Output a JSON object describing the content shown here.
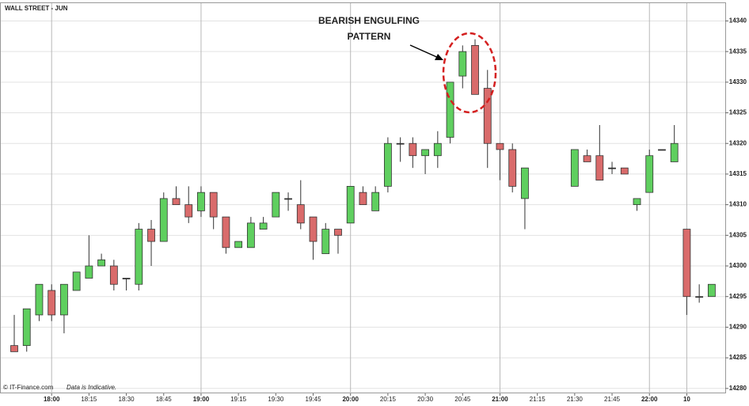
{
  "chart_data": {
    "type": "candlestick",
    "title": "WALL STREET - JUN",
    "footer": "© IT-Finance.com",
    "footer_note": "Data is Indicative.",
    "annotation": [
      "BEARISH ENGULFING",
      "PATTERN"
    ],
    "categories": [
      null,
      null,
      null,
      "18:00",
      null,
      null,
      "18:15",
      null,
      null,
      "18:30",
      null,
      null,
      "18:45",
      null,
      null,
      "19:00",
      null,
      null,
      "19:15",
      null,
      null,
      "19:30",
      null,
      null,
      "19:45",
      null,
      null,
      "20:00",
      null,
      null,
      "20:15",
      null,
      null,
      "20:30",
      null,
      null,
      "20:45",
      null,
      null,
      "21:00",
      null,
      null,
      "21:15",
      null,
      null,
      "21:30",
      null,
      null,
      "21:45",
      null,
      null,
      "22:00",
      null,
      null,
      "10",
      null,
      null
    ],
    "open": [
      14287,
      14287,
      14292,
      14296,
      14292,
      14296,
      14298,
      14300,
      14300,
      14298,
      14297,
      14306,
      14304,
      14311,
      14310,
      14309,
      14312,
      14308,
      14303,
      14303,
      14306,
      14308,
      14311,
      14310,
      14308,
      14302,
      14306,
      14307,
      14312,
      14309,
      14313,
      14320,
      14320,
      14318,
      14318,
      14321,
      14331,
      14336,
      14329,
      14320,
      14319,
      14311,
      null,
      null,
      null,
      14313,
      14318,
      14318,
      14316,
      14316,
      14310,
      14312,
      14319,
      14317,
      14306,
      14295,
      14295
    ],
    "high": [
      14292,
      14293,
      14297,
      14297,
      14297,
      14299,
      14305,
      14302,
      14301,
      14298,
      14307,
      14307.5,
      14312,
      14313,
      14313,
      14313,
      14312,
      14308,
      14304,
      14308,
      14308,
      14312,
      14312,
      14314,
      14308,
      14307,
      14306,
      14313,
      14313,
      14313,
      14321,
      14321,
      14321,
      14319,
      14322,
      14330,
      14336,
      14337,
      14332,
      14320,
      14320,
      14316,
      null,
      null,
      null,
      14319,
      14319,
      14323,
      14317,
      14316,
      14311,
      14319,
      14319,
      14323,
      14306,
      14297,
      14297
    ],
    "low": [
      14286,
      14286,
      14291,
      14291,
      14289,
      14296,
      14298,
      14300,
      14296,
      14296,
      14296,
      14300,
      14304,
      14310,
      14307,
      14308,
      14306,
      14302,
      14303,
      14303,
      14306,
      14308,
      14309,
      14306,
      14301,
      14302,
      14302,
      14307,
      14310,
      14309,
      14312,
      14317,
      14316,
      14315,
      14316,
      14320,
      14329,
      14328,
      14316,
      14314,
      14312,
      14306,
      null,
      null,
      null,
      14313,
      14317,
      14314,
      14315,
      14315,
      14309,
      14312,
      14319,
      14317,
      14292,
      14294,
      14295
    ],
    "close": [
      14286,
      14293,
      14297,
      14292,
      14297,
      14299,
      14300,
      14301,
      14297,
      14298,
      14306,
      14304,
      14311,
      14310,
      14308,
      14312,
      14308,
      14303,
      14304,
      14307,
      14307,
      14312,
      14311,
      14307,
      14304,
      14306,
      14305,
      14313,
      14310,
      14312,
      14320,
      14320,
      14318,
      14319,
      14320,
      14330,
      14335,
      14328,
      14320,
      14319,
      14313,
      14316,
      null,
      null,
      null,
      14319,
      14317,
      14314,
      14316,
      14315,
      14311,
      14318,
      14319,
      14320,
      14295,
      14295,
      14297
    ],
    "up_color": "#5fcf5f",
    "down_color": "#d96b6b",
    "ylim": [
      14279.2,
      14342.9
    ],
    "yticks": [
      14280,
      14285,
      14290,
      14295,
      14300,
      14305,
      14310,
      14315,
      14320,
      14325,
      14330,
      14335,
      14340
    ],
    "grid": true
  }
}
